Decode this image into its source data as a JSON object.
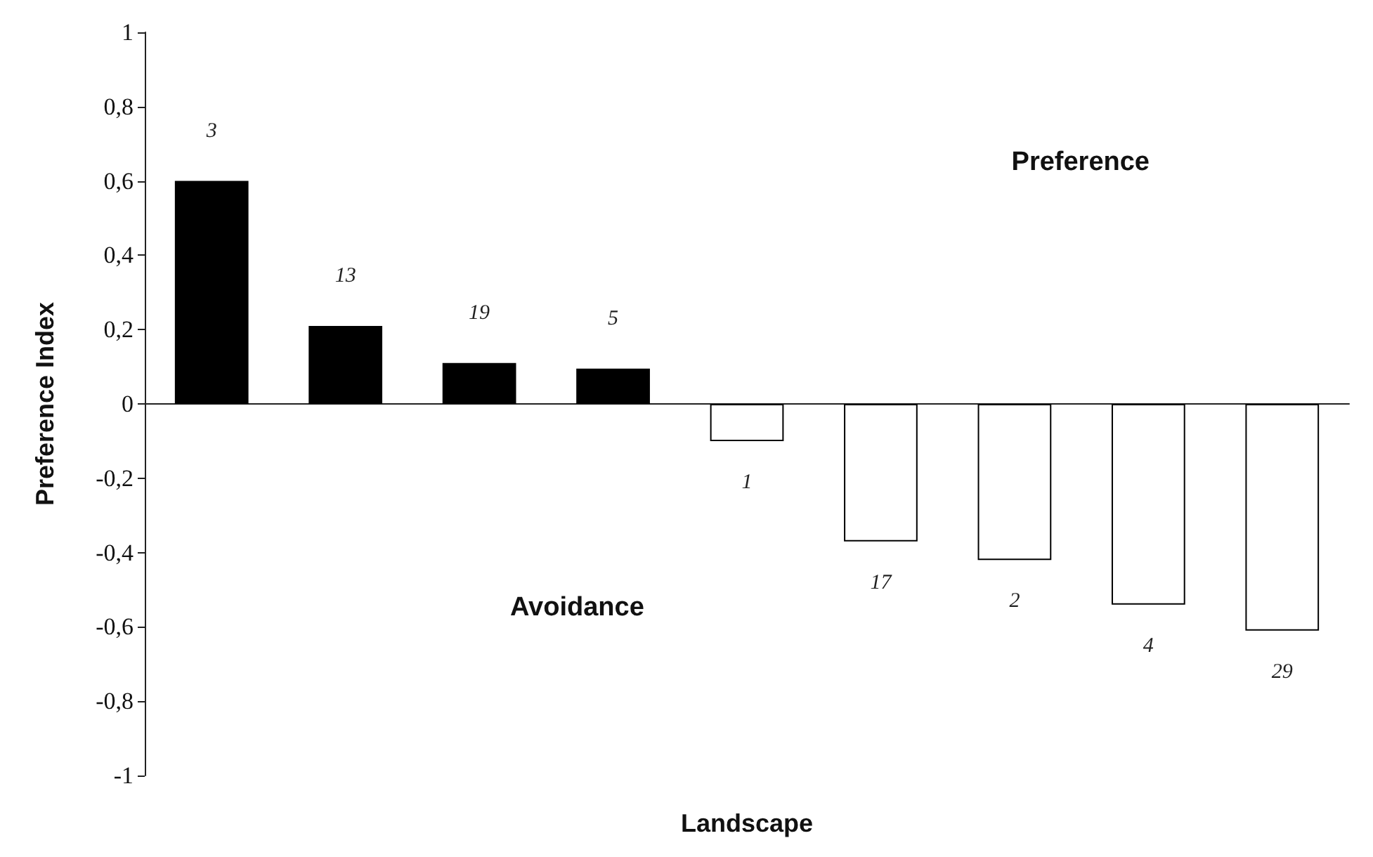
{
  "chart_data": {
    "type": "bar",
    "xlabel": "Landscape",
    "ylabel": "Preference Index",
    "categories": [
      "3",
      "13",
      "19",
      "5",
      "1",
      "17",
      "2",
      "4",
      "29"
    ],
    "values": [
      0.6,
      0.21,
      0.11,
      0.095,
      -0.1,
      -0.37,
      -0.42,
      -0.54,
      -0.61
    ],
    "colors": [
      "#000000",
      "#000000",
      "#000000",
      "#000000",
      "#ffffff",
      "#ffffff",
      "#ffffff",
      "#ffffff",
      "#ffffff"
    ],
    "ylim": [
      -1,
      1
    ],
    "yticks": [
      {
        "value": -1,
        "label": "-1"
      },
      {
        "value": -0.8,
        "label": "-0,8"
      },
      {
        "value": -0.6,
        "label": "-0,6"
      },
      {
        "value": -0.4,
        "label": "-0,4"
      },
      {
        "value": -0.2,
        "label": "-0,2"
      },
      {
        "value": 0,
        "label": "0"
      },
      {
        "value": 0.2,
        "label": "0,2"
      },
      {
        "value": 0.4,
        "label": "0,4"
      },
      {
        "value": 0.6,
        "label": "0,6"
      },
      {
        "value": 0.8,
        "label": "0,8"
      },
      {
        "value": 1,
        "label": "1"
      }
    ],
    "annotations": [
      "Preference",
      "Avoidance"
    ],
    "tick_labels": "y"
  }
}
